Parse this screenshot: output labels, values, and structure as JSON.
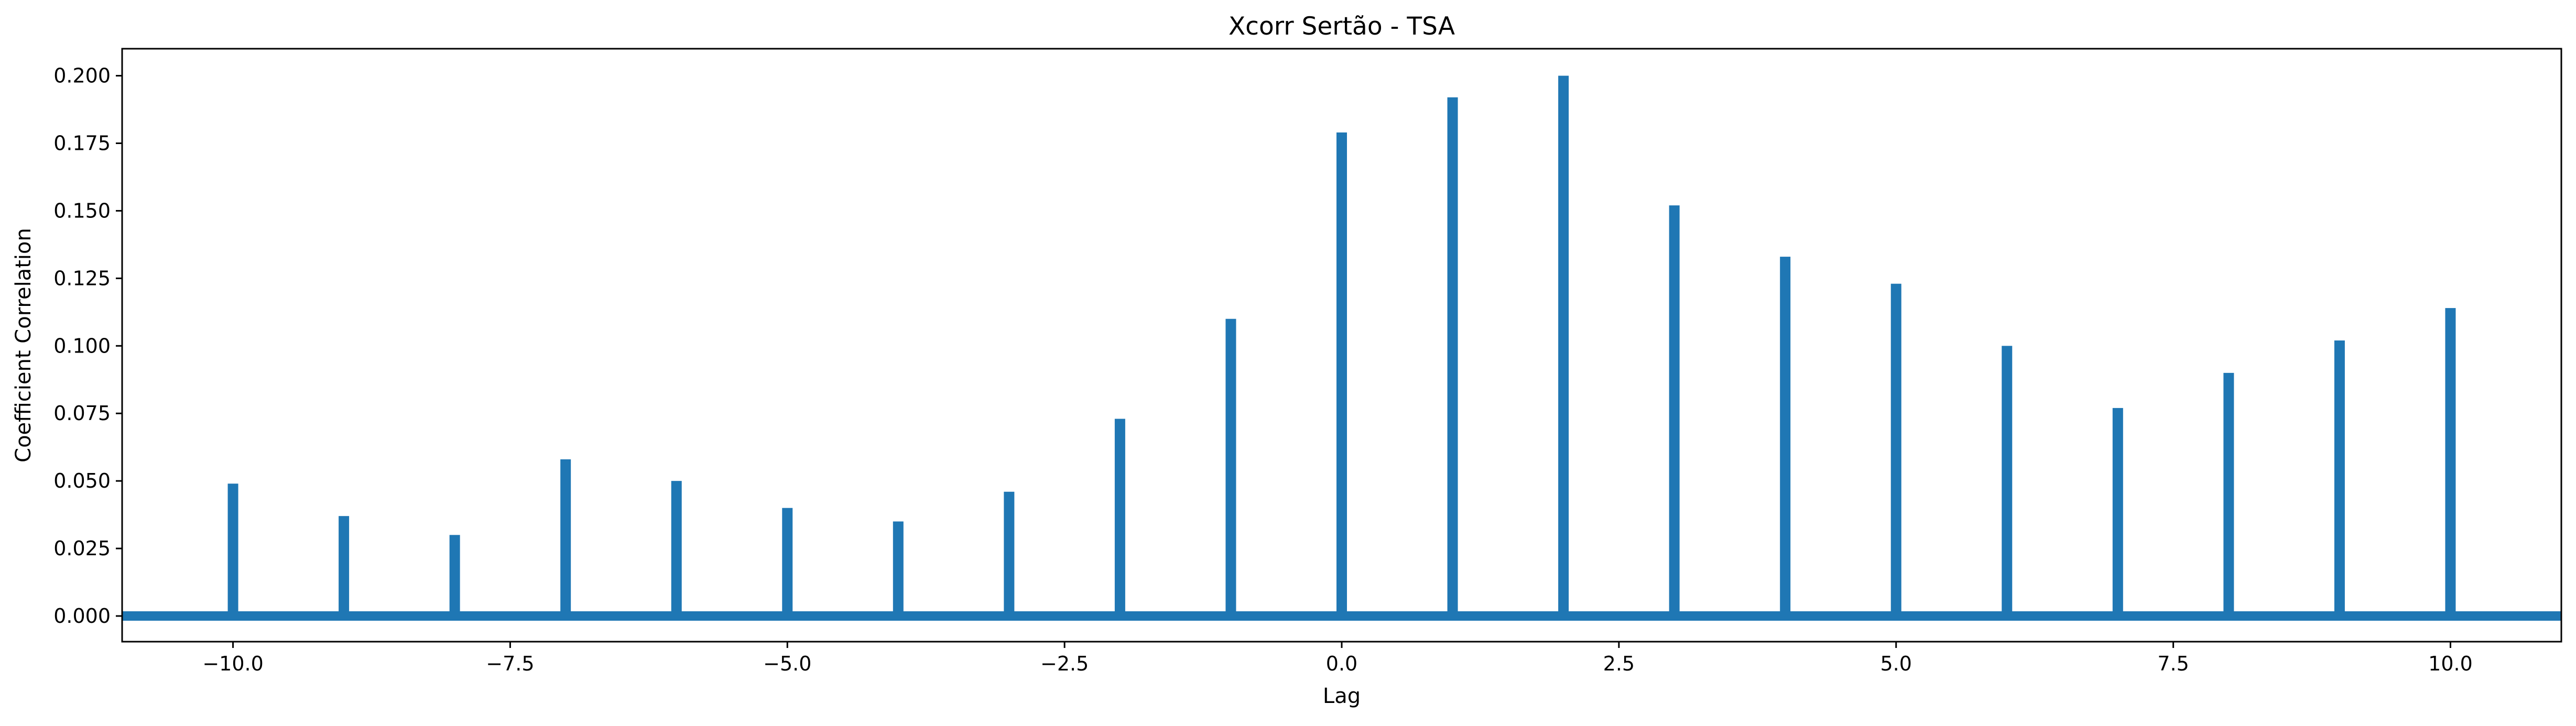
{
  "chart_data": {
    "type": "bar",
    "title": "Xcorr Sertão - TSA",
    "xlabel": "Lag",
    "ylabel": "Coefficient Correlation",
    "x": [
      -10,
      -9,
      -8,
      -7,
      -6,
      -5,
      -4,
      -3,
      -2,
      -1,
      0,
      1,
      2,
      3,
      4,
      5,
      6,
      7,
      8,
      9,
      10
    ],
    "values": [
      0.049,
      0.037,
      0.03,
      0.058,
      0.05,
      0.04,
      0.035,
      0.046,
      0.073,
      0.11,
      0.179,
      0.192,
      0.2,
      0.152,
      0.133,
      0.123,
      0.1,
      0.077,
      0.09,
      0.102,
      0.114
    ],
    "xlim": [
      -11,
      11
    ],
    "ylim": [
      -0.0095,
      0.21
    ],
    "xticks": [
      -10.0,
      -7.5,
      -5.0,
      -2.5,
      0.0,
      2.5,
      5.0,
      7.5,
      10.0
    ],
    "xtick_labels": [
      "−10.0",
      "−7.5",
      "−5.0",
      "−2.5",
      "0.0",
      "2.5",
      "5.0",
      "7.5",
      "10.0"
    ],
    "yticks": [
      0.0,
      0.025,
      0.05,
      0.075,
      0.1,
      0.125,
      0.15,
      0.175,
      0.2
    ],
    "ytick_labels": [
      "0.000",
      "0.025",
      "0.050",
      "0.075",
      "0.100",
      "0.125",
      "0.150",
      "0.175",
      "0.200"
    ],
    "baseline": 0,
    "grid": false,
    "colors": {
      "bar": "#1f77b4",
      "baseline": "#1f77b4",
      "axes": "#000000"
    }
  }
}
